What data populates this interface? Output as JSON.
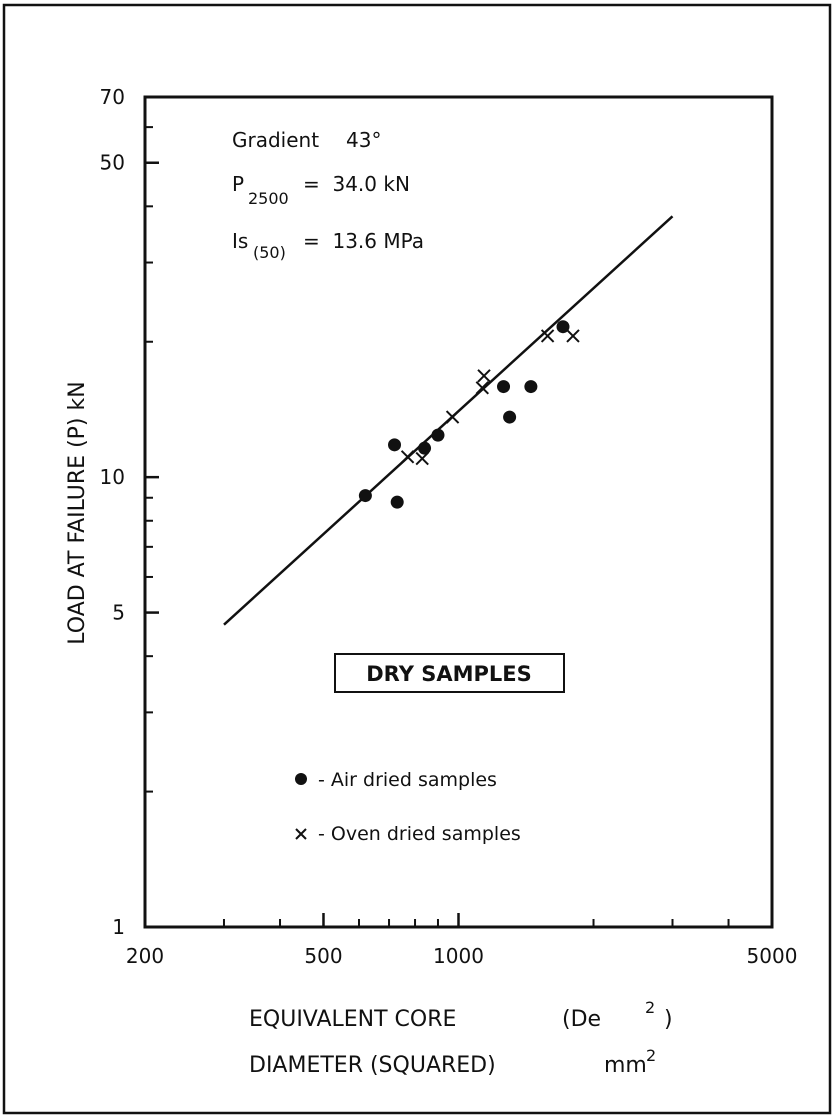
{
  "chart_data": {
    "type": "scatter",
    "title": "",
    "xlabel_line1_main": "EQUIVALENT CORE",
    "xlabel_line1_paren_open": "(De",
    "xlabel_line1_sup": "2",
    "xlabel_line1_paren_close": ")",
    "xlabel_line2_main": "DIAMETER (SQUARED)",
    "xlabel_line2_unit": "mm",
    "xlabel_line2_sup": "2",
    "ylabel": "LOAD AT FAILURE (P) kN",
    "xscale": "log",
    "yscale": "log",
    "xlim": [
      200,
      5000
    ],
    "ylim": [
      1,
      70
    ],
    "x_ticks": [
      {
        "value": 200,
        "label": "200"
      },
      {
        "value": 500,
        "label": "500"
      },
      {
        "value": 1000,
        "label": "1000"
      },
      {
        "value": 5000,
        "label": "5000"
      }
    ],
    "x_minor_ticks": [
      300,
      400,
      600,
      700,
      800,
      900,
      2000,
      3000,
      4000
    ],
    "y_ticks": [
      {
        "value": 1,
        "label": "1"
      },
      {
        "value": 5,
        "label": "5"
      },
      {
        "value": 10,
        "label": "10"
      },
      {
        "value": 50,
        "label": "50"
      },
      {
        "value": 70,
        "label": "70"
      }
    ],
    "y_minor_ticks": [
      2,
      3,
      4,
      6,
      7,
      8,
      9,
      20,
      30,
      40,
      60
    ],
    "annotations": {
      "gradient_label": "Gradient",
      "gradient_value": "43°",
      "p_symbol": "P",
      "p_subscript": "2500",
      "p_value": "=  34.0 kN",
      "is_symbol": "Is",
      "is_subscript": "(50)",
      "is_value": "=  13.6 MPa",
      "box_label": "DRY SAMPLES"
    },
    "legend": [
      {
        "marker": "dot",
        "label": "- Air dried samples"
      },
      {
        "marker": "cross",
        "label": "- Oven dried samples"
      }
    ],
    "fit_line": {
      "x": [
        300,
        3000
      ],
      "y": [
        4.7,
        38
      ]
    },
    "series": [
      {
        "name": "Air dried samples",
        "marker": "dot",
        "x": [
          620,
          730,
          720,
          840,
          900,
          1260,
          1300,
          1450,
          1710
        ],
        "y": [
          9.1,
          8.8,
          11.8,
          11.6,
          12.4,
          15.9,
          13.6,
          15.9,
          21.6
        ]
      },
      {
        "name": "Oven dried samples",
        "marker": "cross",
        "x": [
          770,
          830,
          970,
          1130,
          1140,
          1580,
          1800
        ],
        "y": [
          11.1,
          11.0,
          13.6,
          15.8,
          16.8,
          20.6,
          20.6
        ]
      }
    ]
  }
}
